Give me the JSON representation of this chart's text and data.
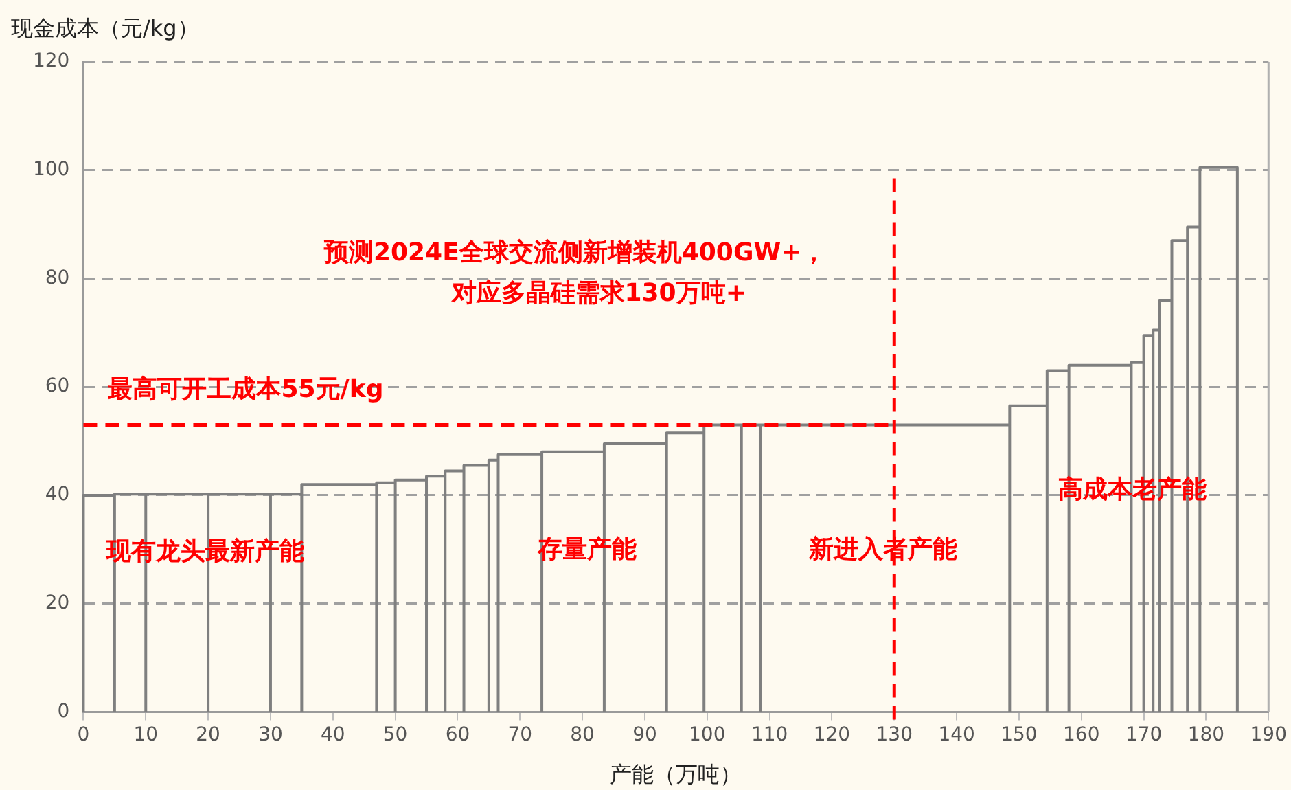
{
  "chart_data": {
    "type": "histogram",
    "xlabel": "产能（万吨）",
    "ylabel": "现金成本（元/kg）",
    "bins": [
      0,
      5,
      10,
      20,
      30,
      35,
      47,
      50,
      55,
      58,
      61,
      65,
      66.5,
      73.5,
      83.5,
      93.5,
      99.5,
      105.5,
      108.5,
      148.5,
      154.5,
      158,
      168,
      170,
      171.5,
      172.5,
      174.5,
      177,
      179,
      185
    ],
    "values": [
      40,
      40.2,
      40.2,
      40.2,
      40.2,
      42,
      42.3,
      42.8,
      43.5,
      44.5,
      45.5,
      46.5,
      47.5,
      48,
      49.5,
      51.5,
      53,
      53,
      53,
      56.5,
      63,
      64,
      64.5,
      69.5,
      70.5,
      76,
      87,
      89.5,
      100.5
    ],
    "color": "#7f7f7f",
    "xlim": [
      0,
      190
    ],
    "xticks": [
      0,
      10,
      20,
      30,
      40,
      50,
      60,
      70,
      80,
      90,
      100,
      110,
      120,
      130,
      140,
      150,
      160,
      170,
      180,
      190
    ],
    "ylim": [
      0,
      120
    ],
    "yticks": [
      0,
      20,
      40,
      60,
      80,
      100,
      120
    ],
    "grid": "y",
    "legend": false,
    "ref_lines": [
      {
        "axis": "y",
        "value": 53,
        "label": "最高可开工成本55元/kg",
        "color": "#ff0000",
        "line_style": "dashed"
      },
      {
        "axis": "x",
        "value": 130,
        "label": null,
        "color": "#ff0000",
        "line_style": "dashed"
      }
    ],
    "annotations": [
      "预测2024E全球交流侧新增装机400GW+，",
      "对应多晶硅需求130万吨+",
      "现有龙头最新产能",
      "存量产能",
      "新进入者产能",
      "高成本老产能"
    ]
  }
}
